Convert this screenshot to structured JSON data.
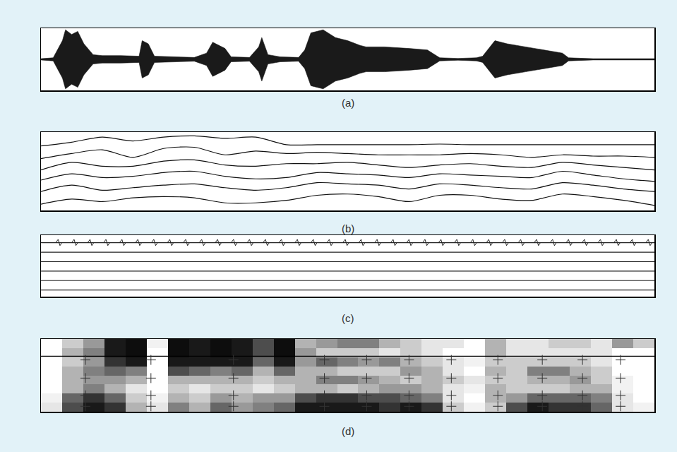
{
  "chart_data": [
    {
      "type": "area",
      "title": "(a)",
      "color": "#1a1a1a",
      "grid": false,
      "tick_labels": false,
      "xlim": [
        0,
        100
      ],
      "ylim": [
        -1,
        1
      ],
      "x": [
        0,
        2,
        3.5,
        4,
        5,
        6,
        7,
        8.5,
        10,
        13,
        16,
        16.5,
        17.5,
        18.5,
        22,
        25,
        27,
        28,
        30,
        31,
        34,
        35.5,
        36,
        37,
        39,
        42,
        43,
        44,
        46,
        48,
        50,
        52,
        53,
        56,
        60,
        63,
        65,
        68,
        71,
        72,
        74,
        76,
        79,
        82,
        85,
        86,
        90,
        100
      ],
      "values": [
        0.02,
        0.05,
        0.6,
        0.95,
        0.8,
        0.9,
        0.5,
        0.15,
        0.12,
        0.12,
        0.1,
        0.6,
        0.5,
        0.1,
        0.08,
        0.06,
        0.2,
        0.55,
        0.35,
        0.08,
        0.06,
        0.4,
        0.7,
        0.15,
        0.08,
        0.06,
        0.3,
        0.85,
        0.95,
        0.7,
        0.6,
        0.45,
        0.4,
        0.4,
        0.35,
        0.3,
        0.05,
        0.03,
        0.05,
        0.1,
        0.6,
        0.5,
        0.4,
        0.3,
        0.2,
        0.05,
        0.02,
        0.02
      ]
    },
    {
      "type": "line",
      "title": "(b)",
      "color": "#111111",
      "grid": false,
      "tick_labels": false,
      "xlim": [
        0,
        100
      ],
      "ylim": [
        0.8,
        7
      ],
      "x": [
        0,
        5,
        10,
        15,
        20,
        25,
        30,
        35,
        40,
        45,
        50,
        55,
        60,
        65,
        70,
        75,
        80,
        85,
        90,
        95,
        100
      ],
      "series": [
        {
          "values": [
            5.9,
            6.2,
            6.6,
            6.3,
            6.6,
            6.7,
            6.5,
            6.6,
            6.0,
            6.0,
            6.0,
            6.0,
            6.0,
            6.05,
            6.0,
            6.0,
            6.0,
            6.0,
            6.0,
            6.0,
            6.0
          ]
        },
        {
          "values": [
            4.9,
            5.3,
            5.6,
            5.0,
            5.7,
            5.8,
            5.2,
            5.5,
            5.3,
            5.4,
            5.3,
            5.2,
            5.2,
            5.2,
            5.3,
            5.2,
            5.0,
            5.2,
            5.1,
            5.1,
            5.0
          ]
        },
        {
          "values": [
            4.0,
            4.6,
            4.3,
            4.3,
            4.7,
            4.8,
            4.4,
            4.3,
            4.5,
            4.5,
            4.6,
            4.4,
            4.2,
            4.4,
            4.5,
            4.3,
            4.2,
            4.6,
            4.4,
            4.2,
            4.0
          ]
        },
        {
          "values": [
            3.2,
            3.7,
            3.4,
            3.5,
            3.8,
            3.9,
            3.5,
            3.3,
            3.4,
            3.8,
            3.7,
            3.6,
            3.4,
            3.7,
            3.6,
            3.5,
            3.4,
            3.9,
            3.6,
            3.3,
            3.1
          ]
        },
        {
          "values": [
            2.3,
            2.8,
            2.4,
            2.6,
            2.8,
            2.9,
            2.6,
            2.4,
            2.6,
            3.0,
            2.9,
            2.8,
            2.5,
            2.9,
            2.8,
            2.6,
            2.5,
            3.0,
            2.8,
            2.5,
            2.3
          ]
        },
        {
          "values": [
            1.3,
            1.7,
            1.5,
            1.8,
            1.9,
            1.8,
            1.4,
            1.4,
            1.6,
            2.0,
            2.1,
            1.9,
            1.5,
            2.0,
            2.0,
            1.7,
            1.6,
            2.1,
            1.9,
            1.6,
            1.2
          ]
        }
      ]
    },
    {
      "type": "line",
      "title": "(c)",
      "color": "#222222",
      "grid": false,
      "tick_labels": false,
      "xlim": [
        0,
        100
      ],
      "ylim": [
        0.3,
        6.8
      ],
      "x": [
        0,
        100
      ],
      "series": [
        {
          "values": [
            6,
            6
          ]
        },
        {
          "values": [
            5,
            5
          ]
        },
        {
          "values": [
            4,
            4
          ]
        },
        {
          "values": [
            3,
            3
          ]
        },
        {
          "values": [
            2,
            2
          ]
        },
        {
          "values": [
            1,
            1
          ]
        }
      ],
      "pulse_x": [
        2.8,
        5.4,
        8.0,
        10.6,
        13.2,
        15.8,
        18.4,
        21.0,
        23.6,
        26.2,
        28.8,
        31.4,
        34.0,
        36.6,
        39.2,
        41.8,
        44.4,
        47.0,
        49.6,
        52.2,
        54.8,
        57.4,
        60.0,
        62.6,
        65.2,
        67.8,
        70.4,
        73.0,
        75.6,
        78.2,
        80.8,
        83.4,
        86.0,
        88.6,
        91.2,
        93.8,
        96.4,
        99.0
      ]
    },
    {
      "type": "heatmap",
      "title": "(d)",
      "color": "#000000",
      "grid": false,
      "tick_labels": false,
      "xlim": [
        -0.5,
        28.5
      ],
      "ylim": [
        -0.5,
        7.5
      ],
      "zlim": [
        0,
        1
      ],
      "cells": [
        [
          0.1,
          0.7,
          0.9,
          0.8,
          0.3,
          0.1,
          0.5,
          0.3,
          0.6,
          0.4,
          0.5,
          0.6,
          0.9,
          0.9,
          0.9,
          0.9,
          0.8,
          0.9,
          0.8,
          0.2,
          0.05,
          0.2,
          0.7,
          0.9,
          0.8,
          0.8,
          0.6,
          0.1,
          0.05
        ],
        [
          0.05,
          0.6,
          0.8,
          0.6,
          0.2,
          0.05,
          0.3,
          0.2,
          0.4,
          0.3,
          0.4,
          0.4,
          0.7,
          0.8,
          0.8,
          0.7,
          0.7,
          0.6,
          0.5,
          0.1,
          0,
          0.3,
          0.4,
          0.6,
          0.6,
          0.6,
          0.5,
          0.1,
          0
        ],
        [
          0,
          0.3,
          0.5,
          0.3,
          0.1,
          0,
          0.2,
          0.1,
          0.2,
          0.2,
          0.1,
          0.2,
          0.3,
          0.3,
          0.2,
          0.3,
          0.4,
          0.4,
          0.3,
          0.1,
          0.05,
          0.3,
          0.2,
          0.2,
          0.2,
          0.3,
          0.3,
          0.05,
          0
        ],
        [
          0,
          0.3,
          0.4,
          0.4,
          0.3,
          0,
          0.3,
          0.3,
          0.3,
          0.3,
          0.2,
          0.3,
          0.3,
          0.5,
          0.5,
          0.4,
          0.3,
          0.2,
          0.3,
          0.2,
          0.1,
          0.2,
          0.2,
          0.3,
          0.3,
          0.4,
          0.2,
          0.05,
          0
        ],
        [
          0,
          0.3,
          0.5,
          0.6,
          0.5,
          0,
          0.7,
          0.6,
          0.5,
          0.6,
          0.3,
          0.6,
          0.3,
          0.3,
          0.2,
          0.2,
          0.2,
          0.4,
          0.3,
          0.1,
          0,
          0.3,
          0.2,
          0.5,
          0.5,
          0.3,
          0.2,
          0,
          0
        ],
        [
          0,
          0.2,
          0.4,
          0.8,
          0.9,
          0,
          0.9,
          0.9,
          0.9,
          0.9,
          0.6,
          0.9,
          0.4,
          0.6,
          0.5,
          0.4,
          0.5,
          0.3,
          0.2,
          0.1,
          0.05,
          0.2,
          0.2,
          0.2,
          0.2,
          0.2,
          0.1,
          0,
          0
        ],
        [
          0,
          0.3,
          0.5,
          0.9,
          0.95,
          0,
          0.95,
          0.9,
          0.95,
          0.9,
          0.7,
          0.95,
          0.4,
          0.2,
          0.2,
          0.2,
          0.1,
          0.2,
          0.1,
          0,
          0,
          0.3,
          0.1,
          0.1,
          0.1,
          0.1,
          0.1,
          0,
          0
        ],
        [
          0,
          0.2,
          0.4,
          0.9,
          0.95,
          0.05,
          0.95,
          0.9,
          0.95,
          0.9,
          0.7,
          0.95,
          0.3,
          0.4,
          0.5,
          0.5,
          0.3,
          0.2,
          0.1,
          0.1,
          0,
          0.3,
          0.1,
          0.1,
          0.2,
          0.2,
          0.1,
          0.4,
          0.2
        ]
      ],
      "reference_line": 5.6,
      "marker_columns": [
        1.6,
        4.7,
        8.6,
        12.9,
        14.9,
        16.9,
        18.9,
        21.1,
        23.2,
        25.1,
        26.9
      ],
      "marker_rows": [
        5.2,
        3.2,
        1.3,
        0.1
      ]
    }
  ]
}
